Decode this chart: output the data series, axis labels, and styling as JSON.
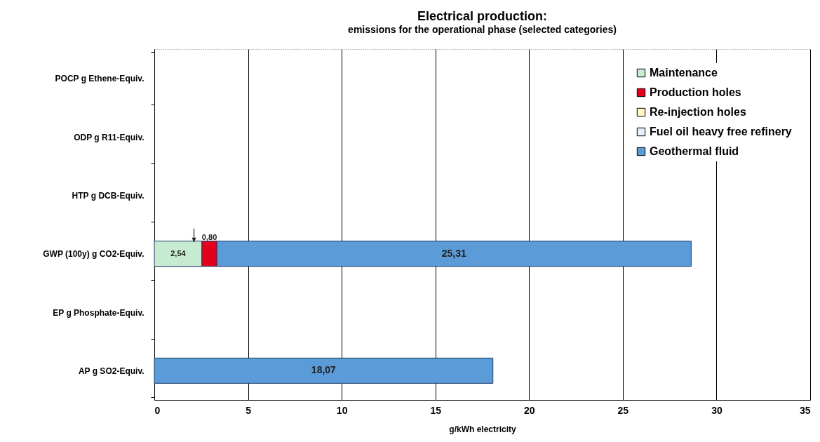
{
  "chart_data": {
    "type": "bar",
    "orientation": "horizontal",
    "stacked": true,
    "title": "Electrical production:",
    "subtitle": "emissions for the operational phase (selected categories)",
    "xlabel": "g/kWh electricity",
    "categories": [
      "POCP g Ethene-Equiv.",
      "ODP g R11-Equiv.",
      "HTP g DCB-Equiv.",
      "GWP (100y) g CO2-Equiv.",
      "EP g Phosphate-Equiv.",
      "AP g SO2-Equiv."
    ],
    "series": [
      {
        "name": "Maintenance",
        "color": "#c6ebd0",
        "values": [
          null,
          null,
          null,
          2.54,
          null,
          null
        ],
        "value_labels": [
          null,
          null,
          null,
          "2,54",
          null,
          null
        ]
      },
      {
        "name": "Production holes",
        "color": "#e2001a",
        "values": [
          null,
          null,
          null,
          0.8,
          null,
          null
        ],
        "value_labels": [
          null,
          null,
          null,
          "0,80",
          null,
          null
        ]
      },
      {
        "name": "Re-injection holes",
        "color": "#fff6c4",
        "values": [
          null,
          null,
          null,
          null,
          null,
          null
        ]
      },
      {
        "name": "Fuel oil heavy free refinery",
        "color": "#e3f0fb",
        "values": [
          null,
          null,
          null,
          null,
          null,
          null
        ]
      },
      {
        "name": "Geothermal fluid",
        "color": "#5b9bd8",
        "values": [
          null,
          null,
          null,
          25.31,
          null,
          18.07
        ],
        "value_labels": [
          null,
          null,
          null,
          "25,31",
          null,
          "18,07"
        ]
      }
    ],
    "xlim": [
      0,
      35
    ],
    "xticks": [
      0,
      5,
      10,
      15,
      20,
      25,
      30,
      35
    ],
    "grid": "x",
    "legend": "top right"
  }
}
